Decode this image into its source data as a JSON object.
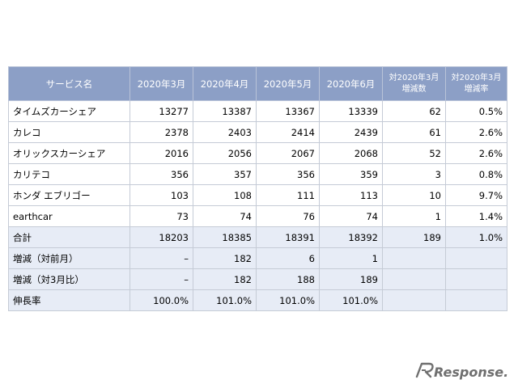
{
  "table": {
    "headers": [
      "サービス名",
      "2020年3月",
      "2020年4月",
      "2020年5月",
      "2020年6月",
      [
        "対2020年3月",
        "増減数"
      ],
      [
        "対2020年3月",
        "増減率"
      ]
    ],
    "rows": [
      [
        "タイムズカーシェア",
        "13277",
        "13387",
        "13367",
        "13339",
        "62",
        "0.5%"
      ],
      [
        "カレコ",
        "2378",
        "2403",
        "2414",
        "2439",
        "61",
        "2.6%"
      ],
      [
        "オリックスカーシェア",
        "2016",
        "2056",
        "2067",
        "2068",
        "52",
        "2.6%"
      ],
      [
        "カリテコ",
        "356",
        "357",
        "356",
        "359",
        "3",
        "0.8%"
      ],
      [
        "ホンダ エブリゴー",
        "103",
        "108",
        "111",
        "113",
        "10",
        "9.7%"
      ],
      [
        "earthcar",
        "73",
        "74",
        "76",
        "74",
        "1",
        "1.4%"
      ],
      [
        "合計",
        "18203",
        "18385",
        "18391",
        "18392",
        "189",
        "1.0%"
      ],
      [
        "増減（対前月）",
        "–",
        "182",
        "6",
        "1",
        "",
        ""
      ],
      [
        "増減（対3月比）",
        "–",
        "182",
        "188",
        "189",
        "",
        ""
      ],
      [
        "伸長率",
        "100.0%",
        "101.0%",
        "101.0%",
        "101.0%",
        "",
        ""
      ]
    ]
  },
  "watermark": {
    "text": "Response."
  },
  "colors": {
    "header_bg": "#8c9fc6",
    "summary_bg": "#e7ecf6",
    "border": "#c5cbd6"
  }
}
